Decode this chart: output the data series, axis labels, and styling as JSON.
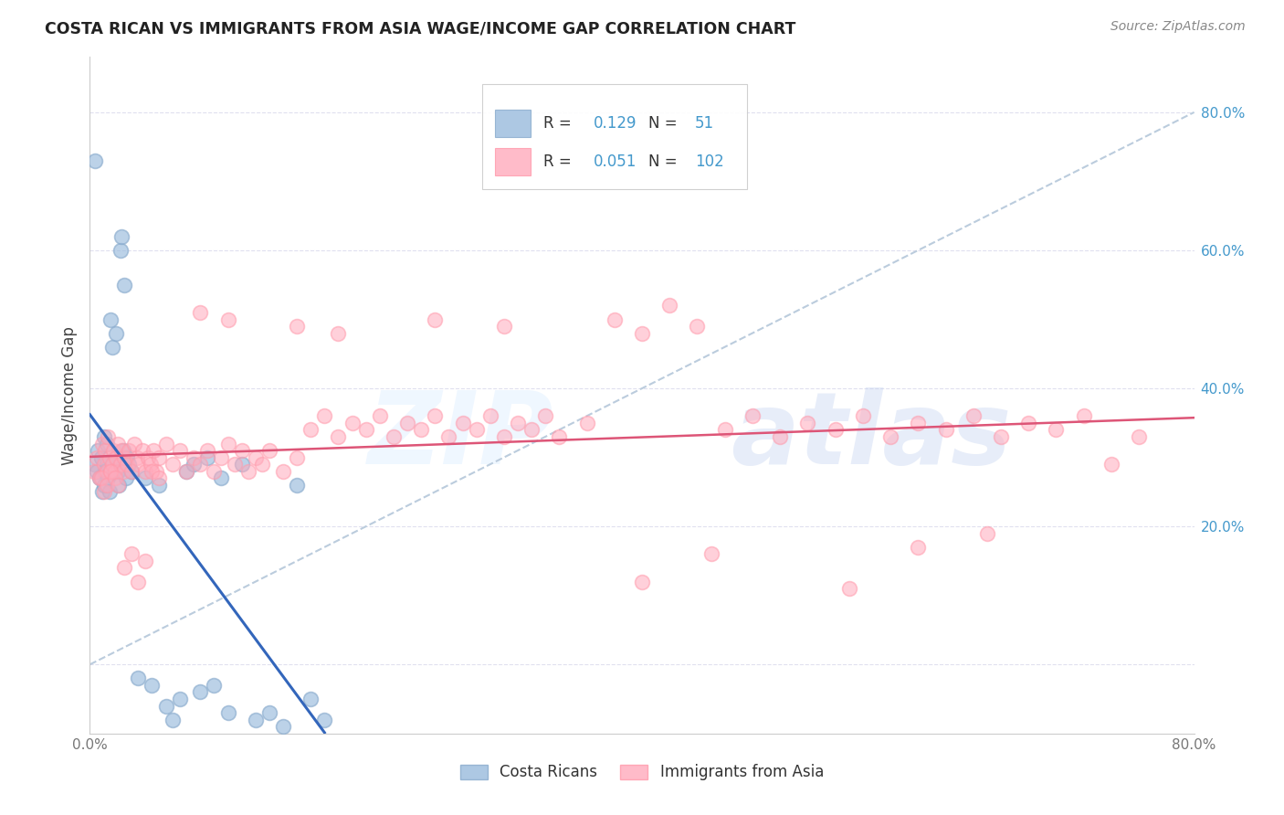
{
  "title": "COSTA RICAN VS IMMIGRANTS FROM ASIA WAGE/INCOME GAP CORRELATION CHART",
  "source": "Source: ZipAtlas.com",
  "ylabel": "Wage/Income Gap",
  "legend_label1": "Costa Ricans",
  "legend_label2": "Immigrants from Asia",
  "color_blue_fill": "#99BBDD",
  "color_blue_edge": "#88AACC",
  "color_pink_fill": "#FFAABC",
  "color_pink_edge": "#FF99AA",
  "color_blue_line": "#3366BB",
  "color_pink_line": "#DD5577",
  "color_dashed": "#BBCCDD",
  "background_color": "#FFFFFF",
  "xlim": [
    0.0,
    0.8
  ],
  "ylim": [
    -0.1,
    0.88
  ],
  "ytick_vals": [
    0.0,
    0.2,
    0.4,
    0.6,
    0.8
  ],
  "ytick_labels": [
    "",
    "20.0%",
    "40.0%",
    "60.0%",
    "80.0%"
  ],
  "xtick_vals": [
    0.0,
    0.1,
    0.2,
    0.3,
    0.4,
    0.5,
    0.6,
    0.7,
    0.8
  ],
  "grid_color": "#DDDDEE",
  "right_tick_color": "#4499CC"
}
